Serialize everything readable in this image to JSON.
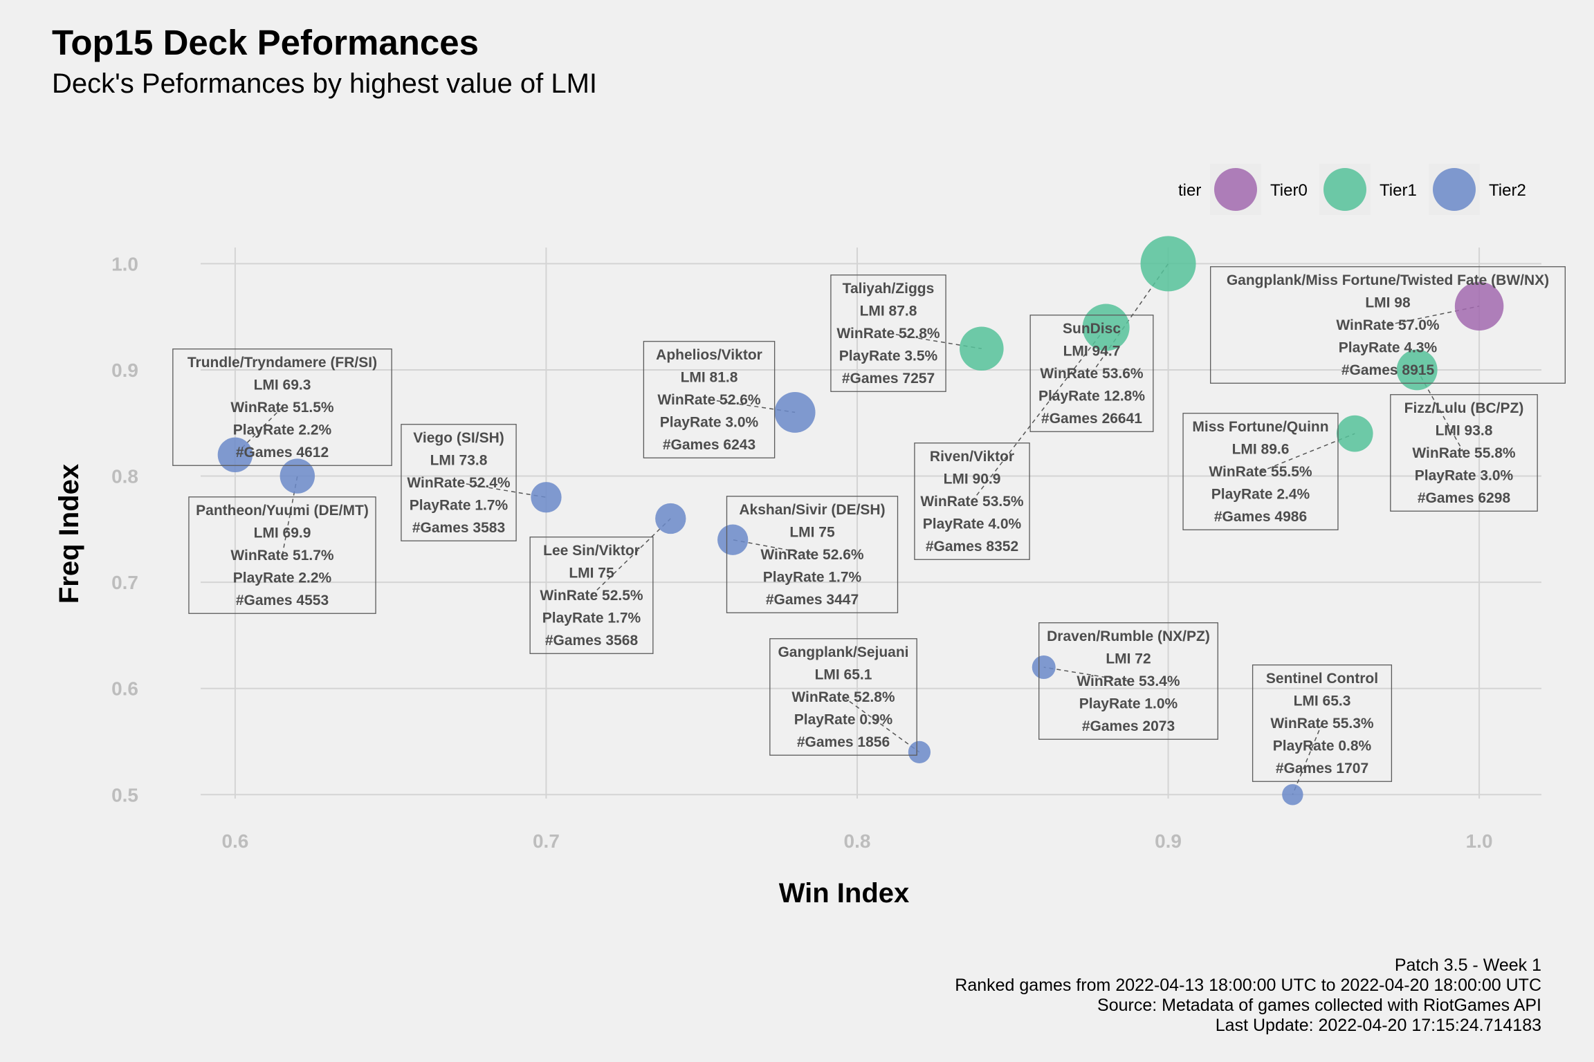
{
  "title": "Top15 Deck Peformances",
  "subtitle": "Deck's Peformances by highest value of LMI",
  "caption": [
    "Patch 3.5 - Week 1",
    "Ranked games from 2022-04-13 18:00:00 UTC to 2022-04-20 18:00:00 UTC",
    "Source: Metadata of games collected with RiotGames API",
    "Last Update: 2022-04-20 17:15:24.714183"
  ],
  "colors": {
    "Tier0": "#a26aaf",
    "Tier1": "#56c29a",
    "Tier2": "#6b8ac9",
    "grid": "#d4d4d4",
    "background": "#f0f0f0"
  },
  "chart_data": {
    "type": "scatter",
    "xlabel": "Win Index",
    "ylabel": "Freq Index",
    "xlim": [
      0.58,
      1.02
    ],
    "ylim": [
      0.48,
      1.025
    ],
    "x_ticks": [
      "0.6",
      "0.7",
      "0.8",
      "0.9",
      "1.0"
    ],
    "y_ticks": [
      "0.5",
      "0.6",
      "0.7",
      "0.8",
      "0.9",
      "1.0"
    ],
    "grid": true,
    "legend": {
      "title": "tier",
      "position": "top-right",
      "entries": [
        "Tier0",
        "Tier1",
        "Tier2"
      ]
    },
    "size_variable": "PlayRate",
    "points": [
      {
        "deck": "Gangplank/Miss Fortune/Twisted Fate (BW/NX)",
        "tier": "Tier0",
        "x": 1.0,
        "y": 0.96,
        "lmi": "98",
        "winrate": "57.0%",
        "playrate": 4.3,
        "games": "8915",
        "label": [
          "Gangplank/Miss Fortune/Twisted Fate (BW/NX)",
          "LMI 98",
          "WinRate 57.0%",
          "PlayRate 4.3%",
          "#Games 8915"
        ]
      },
      {
        "deck": "SunDisc",
        "tier": "Tier1",
        "x": 0.9,
        "y": 1.0,
        "lmi": "94.7",
        "winrate": "53.6%",
        "playrate": 12.8,
        "games": "26641",
        "label": [
          "SunDisc",
          "LMI 94.7",
          "WinRate 53.6%",
          "PlayRate 12.8%",
          "#Games 26641"
        ]
      },
      {
        "deck": "Fizz/Lulu (BC/PZ)",
        "tier": "Tier1",
        "x": 0.98,
        "y": 0.9,
        "lmi": "93.8",
        "winrate": "55.8%",
        "playrate": 3.0,
        "games": "6298",
        "label": [
          "Fizz/Lulu (BC/PZ)",
          "LMI 93.8",
          "WinRate 55.8%",
          "PlayRate 3.0%",
          "#Games 6298"
        ]
      },
      {
        "deck": "Riven/Viktor",
        "tier": "Tier1",
        "x": 0.88,
        "y": 0.94,
        "lmi": "90.9",
        "winrate": "53.5%",
        "playrate": 4.0,
        "games": "8352",
        "label": [
          "Riven/Viktor",
          "LMI 90.9",
          "WinRate 53.5%",
          "PlayRate 4.0%",
          "#Games 8352"
        ]
      },
      {
        "deck": "Miss Fortune/Quinn",
        "tier": "Tier1",
        "x": 0.96,
        "y": 0.84,
        "lmi": "89.6",
        "winrate": "55.5%",
        "playrate": 2.4,
        "games": "4986",
        "label": [
          "Miss Fortune/Quinn",
          "LMI 89.6",
          "WinRate 55.5%",
          "PlayRate 2.4%",
          "#Games 4986"
        ]
      },
      {
        "deck": "Taliyah/Ziggs",
        "tier": "Tier1",
        "x": 0.84,
        "y": 0.92,
        "lmi": "87.8",
        "winrate": "52.8%",
        "playrate": 3.5,
        "games": "7257",
        "label": [
          "Taliyah/Ziggs",
          "LMI 87.8",
          "WinRate 52.8%",
          "PlayRate 3.5%",
          "#Games 7257"
        ]
      },
      {
        "deck": "Aphelios/Viktor",
        "tier": "Tier2",
        "x": 0.78,
        "y": 0.86,
        "lmi": "81.8",
        "winrate": "52.6%",
        "playrate": 3.0,
        "games": "6243",
        "label": [
          "Aphelios/Viktor",
          "LMI 81.8",
          "WinRate 52.6%",
          "PlayRate 3.0%",
          "#Games 6243"
        ]
      },
      {
        "deck": "Akshan/Sivir (DE/SH)",
        "tier": "Tier2",
        "x": 0.76,
        "y": 0.74,
        "lmi": "75",
        "winrate": "52.6%",
        "playrate": 1.7,
        "games": "3447",
        "label": [
          "Akshan/Sivir (DE/SH)",
          "LMI 75",
          "WinRate 52.6%",
          "PlayRate 1.7%",
          "#Games 3447"
        ]
      },
      {
        "deck": "Lee Sin/Viktor",
        "tier": "Tier2",
        "x": 0.74,
        "y": 0.76,
        "lmi": "75",
        "winrate": "52.5%",
        "playrate": 1.7,
        "games": "3568",
        "label": [
          "Lee Sin/Viktor",
          "LMI 75",
          "WinRate 52.5%",
          "PlayRate 1.7%",
          "#Games 3568"
        ]
      },
      {
        "deck": "Viego (SI/SH)",
        "tier": "Tier2",
        "x": 0.7,
        "y": 0.78,
        "lmi": "73.8",
        "winrate": "52.4%",
        "playrate": 1.7,
        "games": "3583",
        "label": [
          "Viego (SI/SH)",
          "LMI 73.8",
          "WinRate 52.4%",
          "PlayRate 1.7%",
          "#Games 3583"
        ]
      },
      {
        "deck": "Draven/Rumble (NX/PZ)",
        "tier": "Tier2",
        "x": 0.86,
        "y": 0.62,
        "lmi": "72",
        "winrate": "53.4%",
        "playrate": 1.0,
        "games": "2073",
        "label": [
          "Draven/Rumble (NX/PZ)",
          "LMI 72",
          "WinRate 53.4%",
          "PlayRate 1.0%",
          "#Games 2073"
        ]
      },
      {
        "deck": "Pantheon/Yuumi (DE/MT)",
        "tier": "Tier2",
        "x": 0.62,
        "y": 0.8,
        "lmi": "69.9",
        "winrate": "51.7%",
        "playrate": 2.2,
        "games": "4553",
        "label": [
          "Pantheon/Yuumi (DE/MT)",
          "LMI 69.9",
          "WinRate 51.7%",
          "PlayRate 2.2%",
          "#Games 4553"
        ]
      },
      {
        "deck": "Trundle/Tryndamere (FR/SI)",
        "tier": "Tier2",
        "x": 0.6,
        "y": 0.82,
        "lmi": "69.3",
        "winrate": "51.5%",
        "playrate": 2.2,
        "games": "4612",
        "label": [
          "Trundle/Tryndamere (FR/SI)",
          "LMI 69.3",
          "WinRate 51.5%",
          "PlayRate 2.2%",
          "#Games 4612"
        ]
      },
      {
        "deck": "Sentinel Control",
        "tier": "Tier2",
        "x": 0.94,
        "y": 0.5,
        "lmi": "65.3",
        "winrate": "55.3%",
        "playrate": 0.8,
        "games": "1707",
        "label": [
          "Sentinel Control",
          "LMI 65.3",
          "WinRate 55.3%",
          "PlayRate 0.8%",
          "#Games 1707"
        ]
      },
      {
        "deck": "Gangplank/Sejuani",
        "tier": "Tier2",
        "x": 0.82,
        "y": 0.54,
        "lmi": "65.1",
        "winrate": "52.8%",
        "playrate": 0.9,
        "games": "1856",
        "label": [
          "Gangplank/Sejuani",
          "LMI 65.1",
          "WinRate 52.8%",
          "PlayRate 0.9%",
          "#Games 1856"
        ]
      }
    ]
  }
}
